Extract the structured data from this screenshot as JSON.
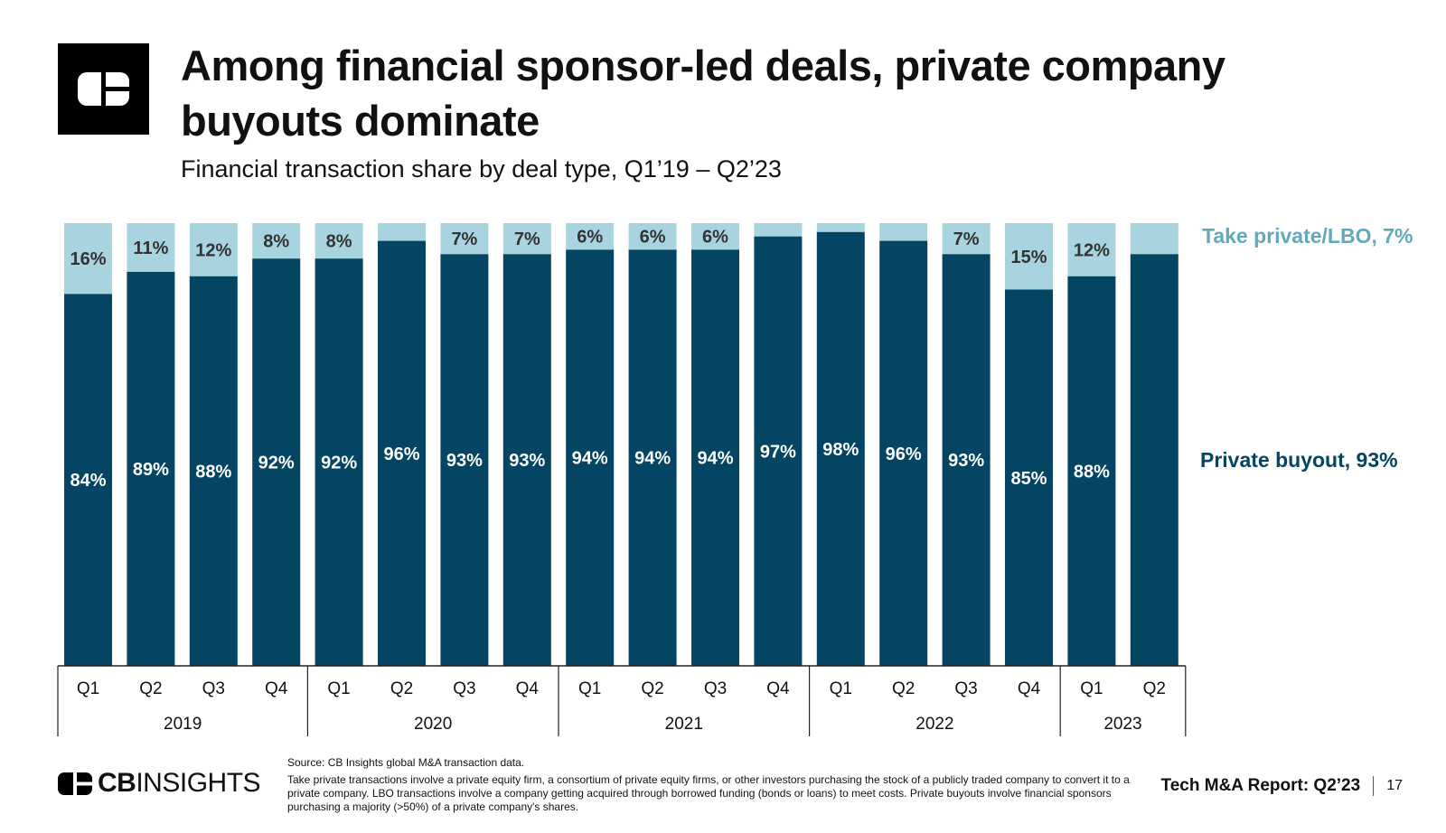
{
  "header": {
    "title": "Among financial sponsor-led deals, private company buyouts dominate",
    "subtitle": "Financial transaction share by deal type, Q1’19 – Q2’23"
  },
  "colors": {
    "private_buyout": "#034563",
    "take_private": "#a8d4df",
    "take_private_text": "#62a9bd"
  },
  "chart_data": {
    "type": "bar",
    "stacked": true,
    "normalized": true,
    "categories": [
      "Q1",
      "Q2",
      "Q3",
      "Q4",
      "Q1",
      "Q2",
      "Q3",
      "Q4",
      "Q1",
      "Q2",
      "Q3",
      "Q4",
      "Q1",
      "Q2",
      "Q3",
      "Q4",
      "Q1",
      "Q2"
    ],
    "years": [
      {
        "label": "2019",
        "count": 4
      },
      {
        "label": "2020",
        "count": 4
      },
      {
        "label": "2021",
        "count": 4
      },
      {
        "label": "2022",
        "count": 4
      },
      {
        "label": "2023",
        "count": 2
      }
    ],
    "series": [
      {
        "name": "Private buyout",
        "values": [
          84,
          89,
          88,
          92,
          92,
          96,
          93,
          93,
          94,
          94,
          94,
          97,
          98,
          96,
          93,
          85,
          88,
          93
        ],
        "labels": [
          "84%",
          "89%",
          "88%",
          "92%",
          "92%",
          "96%",
          "93%",
          "93%",
          "94%",
          "94%",
          "94%",
          "97%",
          "98%",
          "96%",
          "93%",
          "85%",
          "88%",
          ""
        ]
      },
      {
        "name": "Take private/LBO",
        "values": [
          16,
          11,
          12,
          8,
          8,
          4,
          7,
          7,
          6,
          6,
          6,
          3,
          2,
          4,
          7,
          15,
          12,
          7
        ],
        "labels": [
          "16%",
          "11%",
          "12%",
          "8%",
          "8%",
          "",
          "7%",
          "7%",
          "6%",
          "6%",
          "6%",
          "",
          "",
          "",
          "7%",
          "15%",
          "12%",
          ""
        ]
      }
    ],
    "ylim": [
      0,
      100
    ],
    "end_labels": {
      "take_private": "Take private/LBO, 7%",
      "private_buyout": "Private buyout, 93%"
    }
  },
  "footer": {
    "source": "Source: CB Insights global M&A transaction data.",
    "note": "Take private transactions involve a private equity firm, a consortium of private equity firms, or other investors purchasing the stock of a publicly traded company to convert it to a private company. LBO transactions involve a company getting acquired through borrowed funding (bonds or loans) to meet costs. Private buyouts involve financial sponsors purchasing a majority (>50%) of a private company's shares.",
    "brand_bold": "CB",
    "brand_light": "INSIGHTS",
    "report": "Tech M&A Report: Q2’23",
    "page": "17"
  }
}
